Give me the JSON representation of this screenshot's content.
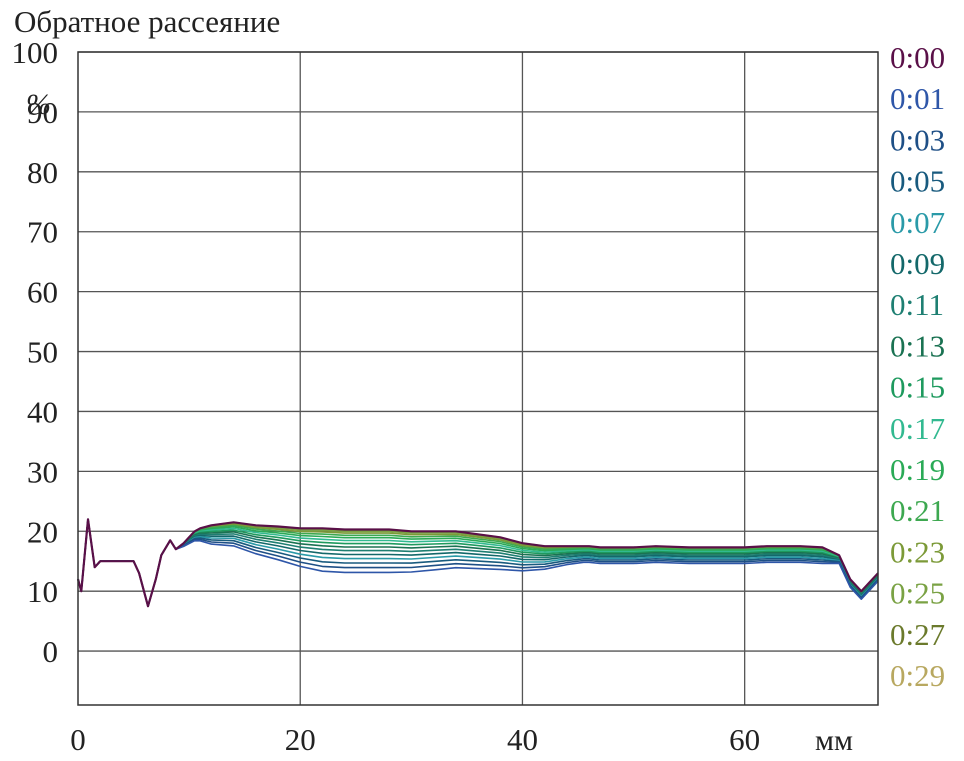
{
  "chart_data": {
    "type": "line",
    "title": "Обратное рассеяние",
    "ylabel": "%",
    "xlabel": "мм",
    "xlim": [
      0,
      72
    ],
    "ylim": [
      -9,
      100
    ],
    "x_ticks": [
      0,
      20,
      40,
      60
    ],
    "y_ticks": [
      0,
      10,
      20,
      30,
      40,
      50,
      60,
      70,
      80,
      90,
      100
    ],
    "grid": true,
    "legend_position": "right",
    "series_x": [
      0,
      0.3,
      0.9,
      1.5,
      2,
      3,
      4,
      5,
      5.5,
      6.3,
      7,
      7.5,
      8.3,
      8.8,
      9.5,
      10,
      10.5,
      11,
      12,
      14,
      16,
      18,
      20,
      22,
      24,
      26,
      28,
      30,
      32,
      34,
      36,
      38,
      40,
      42,
      44,
      45.5,
      46,
      47,
      50,
      52,
      55,
      58,
      60,
      62,
      65,
      67,
      68.5,
      69.5,
      70.5,
      71.5,
      72
    ],
    "series": [
      {
        "name": "0:00",
        "color": "#5a1048",
        "values": [
          12,
          10,
          22,
          14,
          15,
          15,
          15,
          15,
          13,
          7.5,
          12,
          16,
          18.5,
          17,
          18,
          19,
          20,
          20.5,
          21,
          21.5,
          21,
          20.8,
          20.5,
          20.5,
          20.3,
          20.3,
          20.3,
          20,
          20,
          20,
          19.5,
          19,
          18,
          17.5,
          17.5,
          17.5,
          17.5,
          17.3,
          17.3,
          17.5,
          17.3,
          17.3,
          17.3,
          17.5,
          17.5,
          17.3,
          16,
          12,
          10,
          12,
          13
        ]
      },
      {
        "name": "0:01",
        "color": "#2e56a8"
      },
      {
        "name": "0:03",
        "color": "#1e4f86"
      },
      {
        "name": "0:05",
        "color": "#185a7e"
      },
      {
        "name": "0:07",
        "color": "#2a9aa8"
      },
      {
        "name": "0:09",
        "color": "#13686a"
      },
      {
        "name": "0:11",
        "color": "#1e7f72"
      },
      {
        "name": "0:13",
        "color": "#1a7252"
      },
      {
        "name": "0:15",
        "color": "#1e9a5e"
      },
      {
        "name": "0:17",
        "color": "#32b990"
      },
      {
        "name": "0:19",
        "color": "#2aaa56"
      },
      {
        "name": "0:21",
        "color": "#3da850"
      },
      {
        "name": "0:23",
        "color": "#7c9a38"
      },
      {
        "name": "0:25",
        "color": "#7aa244"
      },
      {
        "name": "0:27",
        "color": "#6b7a2c"
      },
      {
        "name": "0:29",
        "color": "#b8a860"
      }
    ]
  }
}
